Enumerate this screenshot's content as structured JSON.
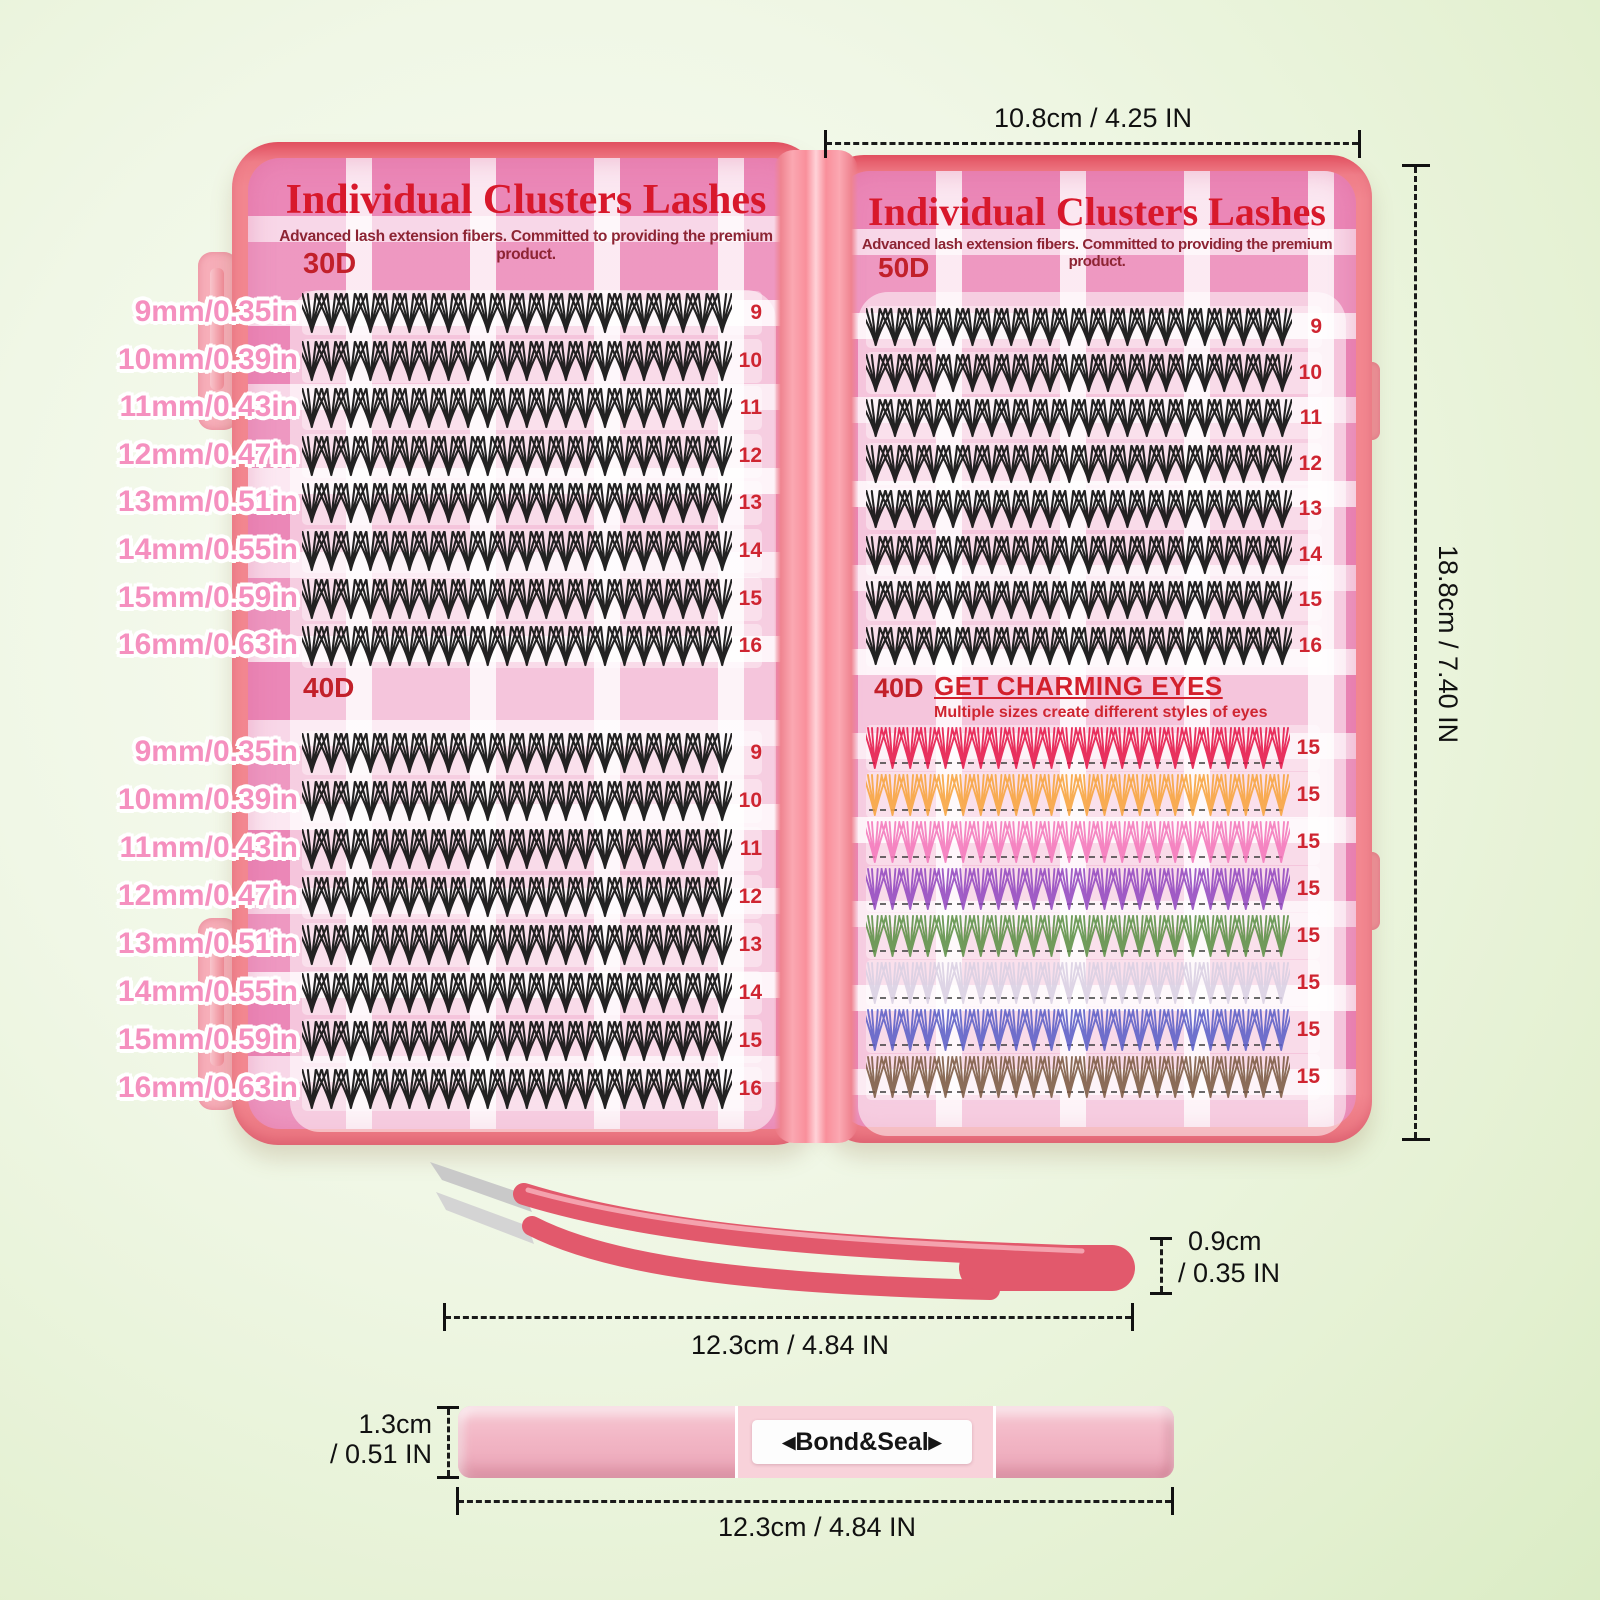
{
  "dims": {
    "case_width": "10.8cm / 4.25 IN",
    "case_height": "18.8cm / 7.40 IN",
    "tweezers_height_line1": "0.9cm",
    "tweezers_height_line2": "/ 0.35 IN",
    "tweezers_length": "12.3cm / 4.84 IN",
    "pen_height_line1": "1.3cm",
    "pen_height_line2": "/ 0.51 IN",
    "pen_length": "12.3cm / 4.84 IN"
  },
  "left_panel": {
    "title": "Individual Clusters Lashes",
    "subtitle": "Advanced lash extension fibers. Committed to providing the premium product.",
    "section1_label": "30D",
    "section2_label": "40D",
    "row_numbers": [
      "9",
      "10",
      "11",
      "12",
      "13",
      "14",
      "15",
      "16"
    ],
    "size_labels": [
      "9mm/0.35in",
      "10mm/0.39in",
      "11mm/0.43in",
      "12mm/0.47in",
      "13mm/0.51in",
      "14mm/0.55in",
      "15mm/0.59in",
      "16mm/0.63in"
    ]
  },
  "right_panel": {
    "title": "Individual Clusters Lashes",
    "subtitle": "Advanced lash extension fibers. Committed to providing the premium product.",
    "section1_label": "50D",
    "section2_label": "40D",
    "charming_title": "GET CHARMING EYES",
    "charming_subtitle": "Multiple sizes create different styles of eyes",
    "row_numbers": [
      "9",
      "10",
      "11",
      "12",
      "13",
      "14",
      "15",
      "16"
    ],
    "color_rows": [
      {
        "name": "red",
        "color": "#e51648",
        "count": "15"
      },
      {
        "name": "orange",
        "color": "#f7a33c",
        "count": "15"
      },
      {
        "name": "pink",
        "color": "#f478bb",
        "count": "15"
      },
      {
        "name": "purple",
        "color": "#9349bf",
        "count": "15"
      },
      {
        "name": "green",
        "color": "#5c8f45",
        "count": "15"
      },
      {
        "name": "clear",
        "color": "#d9cfe3",
        "count": "15"
      },
      {
        "name": "blue",
        "color": "#5b5ec6",
        "count": "15"
      },
      {
        "name": "brown",
        "color": "#7b5941",
        "count": "15"
      }
    ]
  },
  "lash_color": "#161616",
  "pen": {
    "label": "◂Bond&Seal▸"
  },
  "accents": {
    "title_red": "#d8182b",
    "subtitle_maroon": "#8d2433",
    "section_red": "#c2202a",
    "number_red": "#cf2531",
    "size_label_pink": "#f590bf",
    "case_coral": "#f2868f",
    "plaid_pink": "#ef9dc4",
    "tweezers_pink": "#e2596c",
    "pen_pink": "#f2b6c5"
  }
}
